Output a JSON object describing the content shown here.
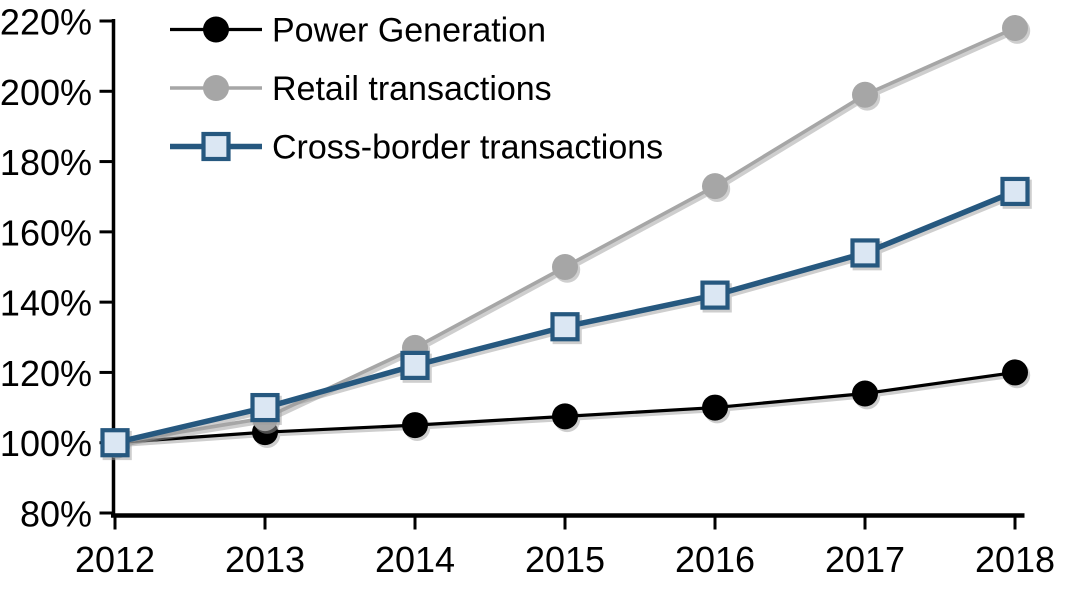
{
  "chart_data": {
    "type": "line",
    "title": "",
    "xlabel": "",
    "ylabel": "",
    "unit": "percent-index (2012 = 100%)",
    "x": [
      2012,
      2013,
      2014,
      2015,
      2016,
      2017,
      2018
    ],
    "xtick_labels": [
      "2012",
      "2013",
      "2014",
      "2015",
      "2016",
      "2017",
      "2018"
    ],
    "ylim": [
      80,
      220
    ],
    "ytick_step": 20,
    "ytick_labels": [
      "80%",
      "100%",
      "120%",
      "140%",
      "160%",
      "180%",
      "200%",
      "220%"
    ],
    "grid": false,
    "legend_position": "top-left",
    "series": [
      {
        "name": "Power Generation",
        "marker": "circle",
        "color": "#000000",
        "marker_fill": "#000000",
        "values": [
          100,
          103,
          105,
          107.5,
          110,
          114,
          120
        ]
      },
      {
        "name": "Retail transactions",
        "marker": "circle",
        "color": "#a6a6a6",
        "marker_fill": "#a6a6a6",
        "values": [
          100,
          107,
          127,
          150,
          173,
          199,
          218
        ]
      },
      {
        "name": "Cross-border transactions",
        "marker": "square",
        "color": "#26587f",
        "marker_fill": "#dbe7f3",
        "values": [
          100,
          110,
          122,
          133,
          142,
          154,
          171.5
        ]
      }
    ]
  },
  "colors": {
    "background": "#ffffff",
    "axis": "#000000",
    "text": "#000000",
    "marker_shadow": "#9e9e9e"
  }
}
